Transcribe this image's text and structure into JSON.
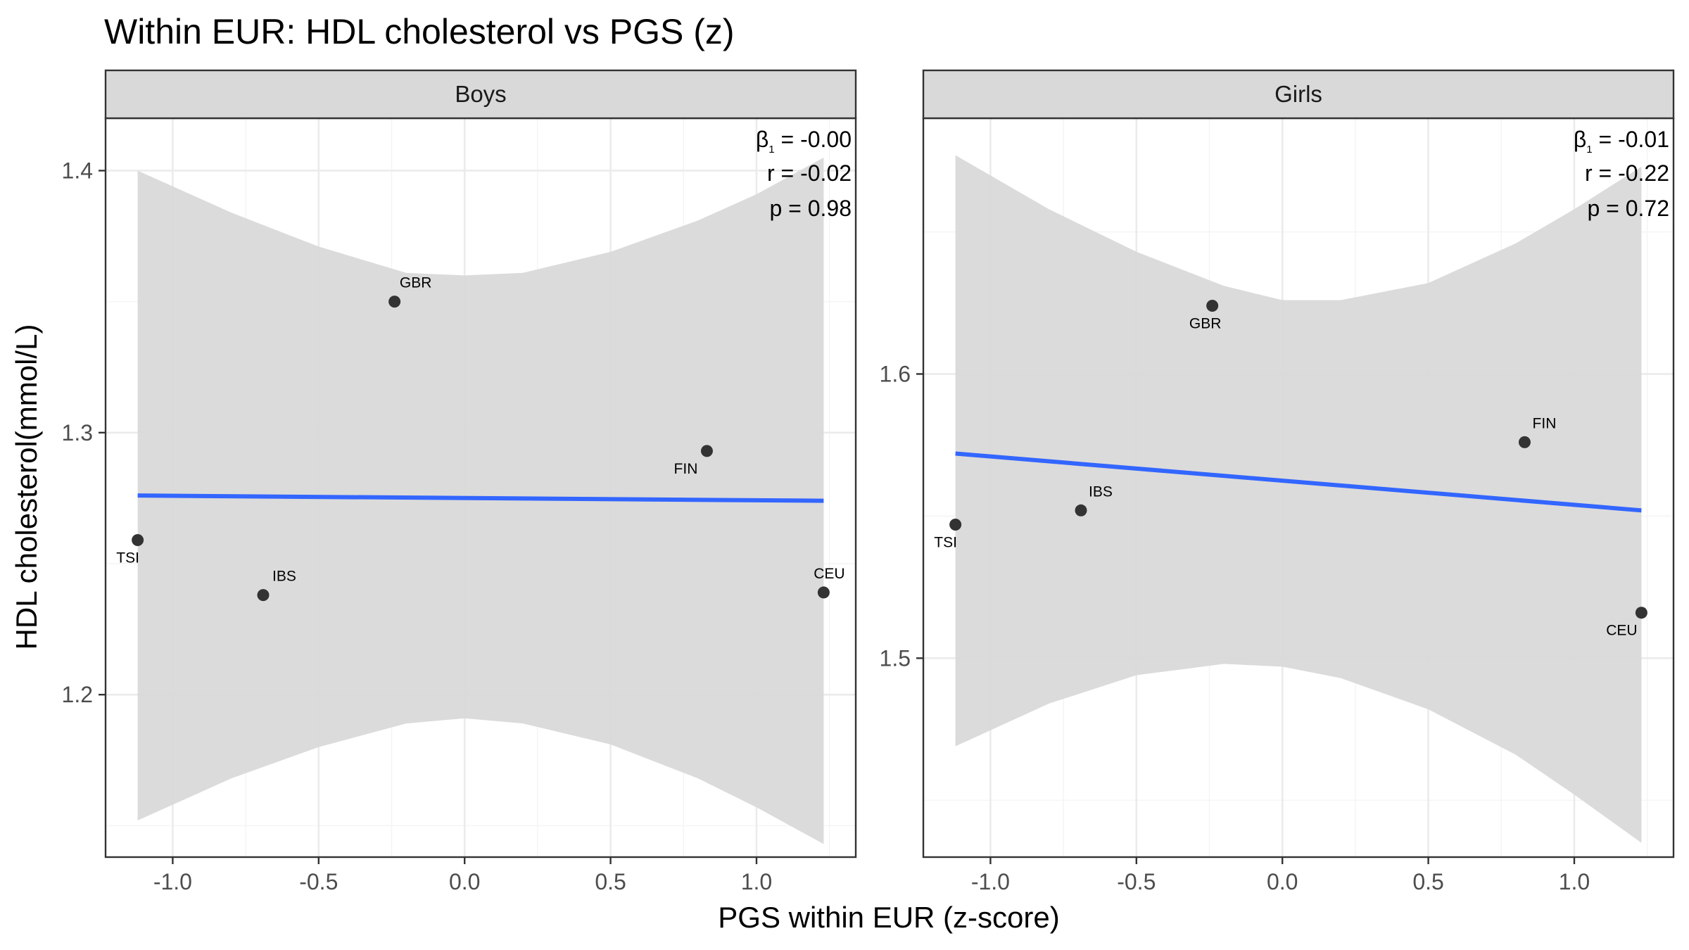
{
  "chart_data": {
    "type": "scatter",
    "title": "Within EUR: HDL cholesterol vs PGS (z)",
    "xlabel": "PGS within EUR (z-score)",
    "ylabel": "HDL cholesterol(mmol/L)",
    "grid": true,
    "panels": [
      {
        "name": "Boys",
        "xlim": [
          -1.23,
          1.34
        ],
        "ylim": [
          1.138,
          1.42
        ],
        "xticks": [
          -1.0,
          -0.5,
          0.0,
          0.5,
          1.0
        ],
        "xtick_labels": [
          "-1.0",
          "-0.5",
          "0.0",
          "0.5",
          "1.0"
        ],
        "yticks": [
          1.2,
          1.3,
          1.4
        ],
        "ytick_labels": [
          "1.2",
          "1.3",
          "1.4"
        ],
        "points": [
          {
            "label": "TSI",
            "x": -1.12,
            "y": 1.259
          },
          {
            "label": "IBS",
            "x": -0.69,
            "y": 1.238
          },
          {
            "label": "GBR",
            "x": -0.24,
            "y": 1.35
          },
          {
            "label": "FIN",
            "x": 0.83,
            "y": 1.293
          },
          {
            "label": "CEU",
            "x": 1.23,
            "y": 1.239
          }
        ],
        "fit": {
          "x": [
            -1.12,
            1.23
          ],
          "y": [
            1.276,
            1.274
          ]
        },
        "ci": {
          "x": [
            -1.12,
            -0.8,
            -0.5,
            -0.2,
            0.0,
            0.2,
            0.5,
            0.8,
            1.0,
            1.23
          ],
          "lower": [
            1.152,
            1.168,
            1.18,
            1.189,
            1.191,
            1.189,
            1.181,
            1.168,
            1.157,
            1.143
          ],
          "upper": [
            1.4,
            1.384,
            1.371,
            1.361,
            1.36,
            1.361,
            1.369,
            1.381,
            1.391,
            1.405
          ]
        },
        "stats": {
          "beta_symbol": "β",
          "beta_subscript": "1",
          "beta": " = -0.00",
          "r": "r = -0.02",
          "p": "p = 0.98"
        }
      },
      {
        "name": "Girls",
        "xlim": [
          -1.23,
          1.34
        ],
        "ylim": [
          1.43,
          1.69
        ],
        "xticks": [
          -1.0,
          -0.5,
          0.0,
          0.5,
          1.0
        ],
        "xtick_labels": [
          "-1.0",
          "-0.5",
          "0.0",
          "0.5",
          "1.0"
        ],
        "yticks": [
          1.5,
          1.6
        ],
        "ytick_labels": [
          "1.5",
          "1.6"
        ],
        "points": [
          {
            "label": "TSI",
            "x": -1.12,
            "y": 1.547
          },
          {
            "label": "IBS",
            "x": -0.69,
            "y": 1.552
          },
          {
            "label": "GBR",
            "x": -0.24,
            "y": 1.624
          },
          {
            "label": "FIN",
            "x": 0.83,
            "y": 1.576
          },
          {
            "label": "CEU",
            "x": 1.23,
            "y": 1.516
          }
        ],
        "fit": {
          "x": [
            -1.12,
            1.23
          ],
          "y": [
            1.572,
            1.552
          ]
        },
        "ci": {
          "x": [
            -1.12,
            -0.8,
            -0.5,
            -0.2,
            0.0,
            0.2,
            0.5,
            0.8,
            1.0,
            1.23
          ],
          "lower": [
            1.469,
            1.484,
            1.494,
            1.498,
            1.497,
            1.493,
            1.482,
            1.466,
            1.452,
            1.435
          ],
          "upper": [
            1.677,
            1.658,
            1.643,
            1.631,
            1.626,
            1.626,
            1.632,
            1.646,
            1.658,
            1.673
          ]
        },
        "stats": {
          "beta_symbol": "β",
          "beta_subscript": "1",
          "beta": " = -0.01",
          "r": "r = -0.22",
          "p": "p = 0.72"
        }
      }
    ]
  },
  "colors": {
    "fit_line": "#3366ff",
    "ci_band": "#d9d9d9",
    "point": "#333333",
    "strip_fill": "#d9d9d9",
    "panel_border": "#333333"
  }
}
